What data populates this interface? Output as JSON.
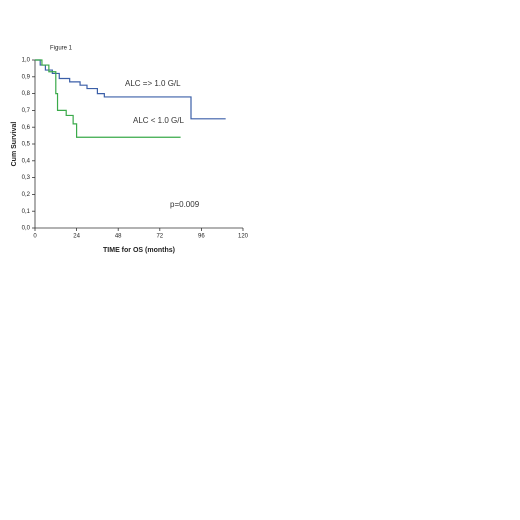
{
  "chart_data": {
    "type": "line",
    "step": "post",
    "title": "Figure 1",
    "x_label": "TIME for OS (months)",
    "y_label": "Cum Survival",
    "annotations": [
      "ALC => 1.0 G/L",
      "ALC < 1.0 G/L",
      "p=0.009"
    ],
    "xlim": [
      0,
      120
    ],
    "xticks": [
      0,
      24,
      48,
      72,
      96,
      120
    ],
    "ylim": [
      0,
      1
    ],
    "yticks": [
      {
        "value": 0,
        "label": "0,0"
      },
      {
        "value": 0.1,
        "label": "0,1"
      },
      {
        "value": 0.2,
        "label": "0,2"
      },
      {
        "value": 0.3,
        "label": "0,3"
      },
      {
        "value": 0.4,
        "label": "0,4"
      },
      {
        "value": 0.5,
        "label": "0,5"
      },
      {
        "value": 0.6,
        "label": "0,6"
      },
      {
        "value": 0.7,
        "label": "0,7"
      },
      {
        "value": 0.8,
        "label": "0,8"
      },
      {
        "value": 0.9,
        "label": "0,9"
      },
      {
        "value": 1,
        "label": "1,0"
      }
    ],
    "series": [
      {
        "color": "#3b5fa8",
        "x": [
          0,
          3,
          6,
          10,
          14,
          20,
          26,
          30,
          36,
          40,
          90,
          110
        ],
        "values": [
          1,
          0.97,
          0.94,
          0.92,
          0.89,
          0.87,
          0.85,
          0.83,
          0.8,
          0.78,
          0.65,
          0.65
        ]
      },
      {
        "color": "#3aaa4a",
        "x": [
          0,
          4,
          8,
          12,
          13,
          18,
          22,
          24,
          84
        ],
        "values": [
          1,
          0.97,
          0.93,
          0.8,
          0.7,
          0.67,
          0.62,
          0.54,
          0.54
        ]
      }
    ]
  }
}
